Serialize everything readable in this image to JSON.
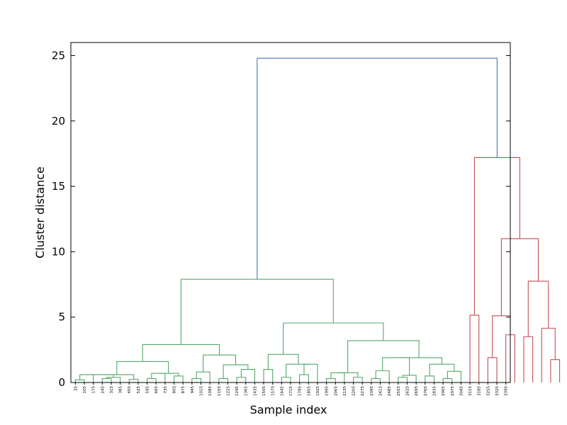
{
  "chart_data": {
    "type": "dendrogram",
    "xlabel": "Sample index",
    "ylabel": "Cluster distance",
    "ylim": [
      0,
      26
    ],
    "yticks": [
      0,
      5,
      10,
      15,
      20,
      25
    ],
    "grid": false,
    "colors": {
      "root": "#4c72b0",
      "cluster_1": "#55a868",
      "cluster_2": "#c44e52"
    },
    "x_tick_labels": [
      "35",
      "105",
      "175",
      "245",
      "315",
      "385",
      "455",
      "525",
      "595",
      "665",
      "735",
      "805",
      "875",
      "945",
      "1015",
      "1085",
      "1155",
      "1225",
      "1295",
      "1365",
      "1435",
      "1505",
      "1575",
      "1645",
      "1715",
      "1785",
      "1855",
      "1925",
      "1995",
      "2065",
      "2135",
      "2205",
      "2275",
      "2345",
      "2415",
      "2485",
      "2555",
      "2625",
      "2695",
      "2765",
      "2835",
      "2905",
      "2975",
      "3045",
      "3115",
      "3185",
      "3255",
      "3325",
      "3395"
    ],
    "merges": [
      {
        "cluster": "root",
        "height": 24.8,
        "children": [
          "cluster_1",
          "cluster_2"
        ]
      },
      {
        "cluster": "cluster_1",
        "height": 7.9
      },
      {
        "cluster": "cluster_1",
        "height": 4.55
      },
      {
        "cluster": "cluster_1",
        "height": 3.2
      },
      {
        "cluster": "cluster_1",
        "height": 2.9
      },
      {
        "cluster": "cluster_1",
        "height": 2.15
      },
      {
        "cluster": "cluster_1",
        "height": 2.1
      },
      {
        "cluster": "cluster_1",
        "height": 1.9
      },
      {
        "cluster": "cluster_1",
        "height": 1.6
      },
      {
        "cluster": "cluster_1",
        "height": 1.4
      },
      {
        "cluster": "cluster_1",
        "height": 1.35
      },
      {
        "cluster": "cluster_2",
        "height": 17.2
      },
      {
        "cluster": "cluster_2",
        "height": 11.0
      },
      {
        "cluster": "cluster_2",
        "height": 7.75
      },
      {
        "cluster": "cluster_2",
        "height": 5.1
      },
      {
        "cluster": "cluster_2",
        "height": 5.15
      },
      {
        "cluster": "cluster_2",
        "height": 4.15
      },
      {
        "cluster": "cluster_2",
        "height": 3.65
      },
      {
        "cluster": "cluster_2",
        "height": 3.5
      },
      {
        "cluster": "cluster_2",
        "height": 3.3
      },
      {
        "cluster": "cluster_2",
        "height": 1.75
      }
    ]
  }
}
